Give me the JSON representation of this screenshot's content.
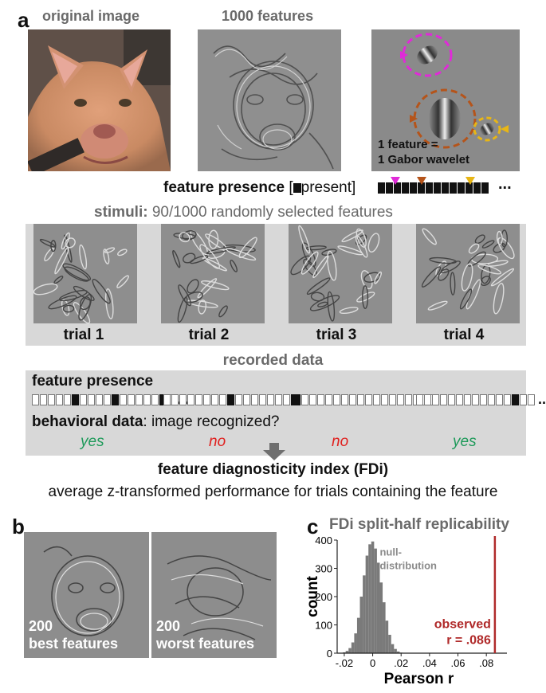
{
  "panels": {
    "a": "a",
    "b": "b",
    "c": "c"
  },
  "top": {
    "original_label": "original image",
    "features_label": "1000 features",
    "gabor_line1": "1 feature =",
    "gabor_line2": "1 Gabor wavelet",
    "presence_label_bold": "feature presence",
    "presence_label_rest": "present]",
    "presence_bracket": "[",
    "ellipsis": "...",
    "marker_colors": [
      "#e02ad8",
      "#b5541a",
      "#e8b615"
    ]
  },
  "stimuli": {
    "label_bold": "stimuli:",
    "label_rest": " 90/1000 randomly selected features",
    "trials": [
      "trial 1",
      "trial 2",
      "trial 3",
      "trial 4"
    ]
  },
  "recorded": {
    "title": "recorded data",
    "presence_label": "feature presence",
    "behavioral_bold": "behavioral data",
    "behavioral_rest": ": image recognized?",
    "answers": [
      {
        "text": "yes",
        "color": "#1e9a5a"
      },
      {
        "text": "no",
        "color": "#e0201e"
      },
      {
        "text": "no",
        "color": "#e0201e"
      },
      {
        "text": "yes",
        "color": "#1e9a5a"
      }
    ],
    "ellipsis": "...",
    "bars": [
      [
        0,
        0,
        0,
        0,
        0,
        1,
        0,
        0,
        0,
        0,
        1,
        0,
        0,
        0,
        0,
        0,
        1,
        0
      ],
      [
        0,
        0,
        0,
        0,
        0,
        0,
        0,
        0,
        1,
        0,
        0,
        0,
        0,
        0,
        0,
        0,
        1
      ],
      [
        1,
        0,
        0,
        0,
        0,
        0,
        0,
        0,
        0,
        0,
        0,
        0,
        0,
        0,
        0,
        0,
        0,
        0
      ],
      [
        0,
        0,
        0,
        0,
        0,
        0,
        0,
        0,
        0,
        0,
        0,
        0,
        1,
        0,
        0
      ]
    ]
  },
  "fdi": {
    "title": "feature diagnosticity index (FDi)",
    "subtitle": "average z-transformed performance for trials containing the feature"
  },
  "panel_b": {
    "left_line1": "200",
    "left_line2": "best features",
    "right_line1": "200",
    "right_line2": "worst features"
  },
  "chart_data": {
    "type": "histogram",
    "title": "FDi split-half replicability",
    "xlabel": "Pearson r",
    "ylabel": "count",
    "x_ticks": [
      "-.02",
      "0",
      ".02",
      ".04",
      ".06",
      ".08"
    ],
    "y_ticks": [
      "0",
      "100",
      "200",
      "300",
      "400"
    ],
    "xlim": [
      -0.025,
      0.09
    ],
    "ylim": [
      0,
      400
    ],
    "null_label_line1": "null-",
    "null_label_line2": "distribution",
    "observed_label_line1": "observed",
    "observed_label_line2": "r = .086",
    "observed_value": 0.086,
    "observed_color": "#b02a2a",
    "bar_color": "#7a7a7a",
    "bins_x": [
      -0.02,
      -0.018,
      -0.016,
      -0.014,
      -0.012,
      -0.01,
      -0.008,
      -0.006,
      -0.004,
      -0.002,
      0.0,
      0.002,
      0.004,
      0.006,
      0.008,
      0.01,
      0.012,
      0.014,
      0.016,
      0.018,
      0.02
    ],
    "bins_count": [
      3,
      8,
      18,
      38,
      70,
      125,
      200,
      275,
      345,
      385,
      395,
      370,
      320,
      250,
      180,
      115,
      65,
      32,
      15,
      6,
      2
    ]
  }
}
